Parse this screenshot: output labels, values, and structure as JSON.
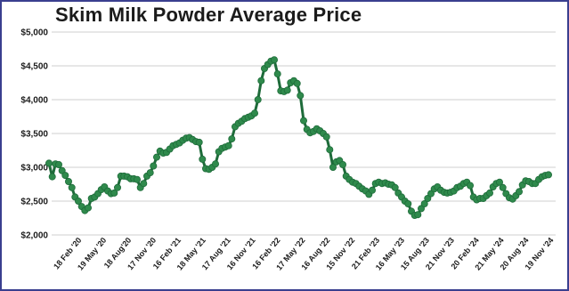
{
  "chart_data": {
    "type": "line",
    "title": "Skim Milk Powder Average Price",
    "xlabel": "",
    "ylabel": "",
    "ylim": [
      2000,
      5000
    ],
    "yticks": [
      "$5,000",
      "$4,500",
      "$4,000",
      "$3,500",
      "$3,000",
      "$2,500",
      "$2,000"
    ],
    "ytick_values": [
      5000,
      4500,
      4000,
      3500,
      3000,
      2500,
      2000
    ],
    "xticks": [
      "18 Feb '20",
      "19 May '20",
      "18 Aug'20",
      "17 Nov '20",
      "16 Feb '21",
      "18 May '21",
      "17 Aug '21",
      "16 Nov '21",
      "16 Feb '22",
      "17 May '22",
      "16 Aug '22",
      "15 Nov '22",
      "21 Feb '23",
      "16 May '23",
      "15 Aug '23",
      "21 Nov '23",
      "20 Feb '24",
      "21 May '24",
      "20 Aug '24",
      "19 Nov '24"
    ],
    "grid": true,
    "legend": "none",
    "series": [
      {
        "color": "#1e6b3a",
        "marker_color": "#2f8a4c",
        "values": [
          3060,
          2860,
          3050,
          3040,
          2950,
          2880,
          2790,
          2700,
          2560,
          2500,
          2420,
          2360,
          2400,
          2540,
          2560,
          2610,
          2670,
          2710,
          2650,
          2610,
          2620,
          2700,
          2870,
          2870,
          2860,
          2830,
          2830,
          2820,
          2700,
          2760,
          2870,
          2920,
          3020,
          3150,
          3240,
          3210,
          3220,
          3270,
          3320,
          3340,
          3360,
          3400,
          3430,
          3440,
          3410,
          3380,
          3370,
          3120,
          2980,
          2970,
          3000,
          3050,
          3230,
          3280,
          3300,
          3320,
          3420,
          3600,
          3650,
          3680,
          3720,
          3740,
          3760,
          3800,
          4000,
          4280,
          4460,
          4520,
          4570,
          4590,
          4380,
          4130,
          4120,
          4140,
          4250,
          4280,
          4240,
          4060,
          3690,
          3560,
          3510,
          3530,
          3570,
          3540,
          3500,
          3450,
          3260,
          3000,
          3080,
          3100,
          3040,
          2870,
          2820,
          2780,
          2760,
          2720,
          2680,
          2650,
          2600,
          2660,
          2760,
          2780,
          2760,
          2770,
          2750,
          2740,
          2700,
          2620,
          2560,
          2500,
          2460,
          2350,
          2290,
          2300,
          2390,
          2460,
          2540,
          2610,
          2680,
          2710,
          2660,
          2630,
          2620,
          2630,
          2650,
          2700,
          2720,
          2760,
          2780,
          2730,
          2560,
          2520,
          2540,
          2540,
          2580,
          2620,
          2710,
          2760,
          2780,
          2700,
          2610,
          2550,
          2530,
          2580,
          2640,
          2740,
          2800,
          2790,
          2760,
          2760,
          2820,
          2860,
          2880,
          2890
        ]
      }
    ]
  }
}
